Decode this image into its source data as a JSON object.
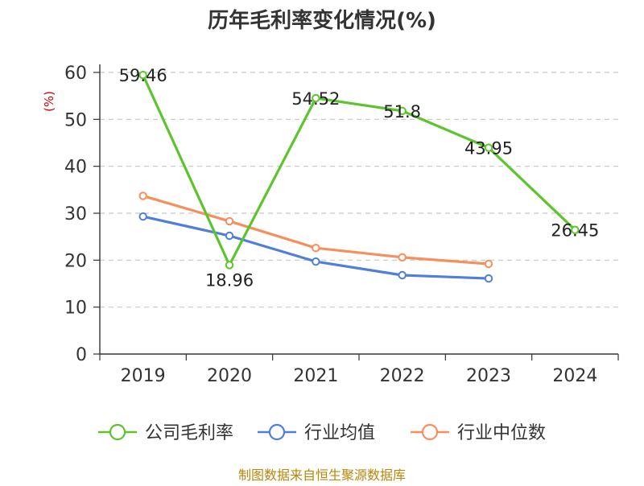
{
  "chart_data": {
    "type": "line",
    "title": "历年毛利率变化情况(%)",
    "ylabel": "(%)",
    "xlabel": "",
    "categories": [
      "2019",
      "2020",
      "2021",
      "2022",
      "2023",
      "2024"
    ],
    "ylim": [
      0,
      60
    ],
    "yticks": [
      0,
      10,
      20,
      30,
      40,
      50,
      60
    ],
    "grid": true,
    "legend_position": "bottom",
    "series": [
      {
        "name": "公司毛利率",
        "color": "#5dc42e",
        "values": [
          59.46,
          18.96,
          54.52,
          51.8,
          43.95,
          26.45
        ],
        "data_labels": [
          "59.46",
          "18.96",
          "54.52",
          "51.8",
          "43.95",
          "26.45"
        ]
      },
      {
        "name": "行业均值",
        "color": "#4f7fdb",
        "values": [
          29.3,
          25.2,
          19.7,
          16.8,
          16.1,
          null
        ]
      },
      {
        "name": "行业中位数",
        "color": "#f78f5d",
        "values": [
          33.7,
          28.3,
          22.6,
          20.6,
          19.2,
          null
        ]
      }
    ],
    "ylabel_color": "#cc0000",
    "source": "制图数据来自恒生聚源数据库",
    "source_color": "#b8860b"
  }
}
